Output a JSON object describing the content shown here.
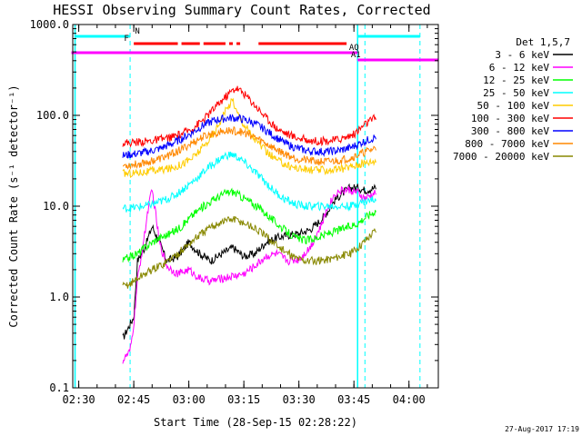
{
  "chart_data": {
    "type": "line",
    "title": "HESSI Observing Summary Count Rates, Corrected",
    "xlabel": "Start Time (28-Sep-15 02:28:22)",
    "ylabel": "Corrected Count Rate (s⁻¹ detector⁻¹)",
    "y_scale": "log",
    "ylim": [
      0.1,
      1000
    ],
    "xlim": [
      "02:28:22",
      "04:08:00"
    ],
    "x_ticks": [
      "02:30",
      "02:45",
      "03:00",
      "03:15",
      "03:30",
      "03:45",
      "04:00"
    ],
    "y_ticks": [
      "0.1",
      "1.0",
      "10.0",
      "100.0",
      "1000.0"
    ],
    "legend_title": "Det 1,5,7",
    "legend_position": "right",
    "footer_date": "27-Aug-2017 17:19",
    "data_start": "02:42",
    "data_end": "03:51",
    "vertical_markers": {
      "solid": [
        "02:29",
        "03:46"
      ],
      "dashed": [
        "02:44",
        "03:48",
        "04:03"
      ]
    },
    "flags": [
      {
        "label": "N",
        "color": "#00ffff",
        "segments": [
          [
            "02:29",
            "02:44"
          ],
          [
            "03:46",
            "04:03"
          ]
        ]
      },
      {
        "label": "F",
        "color": "#ff0000",
        "segments": [
          [
            "02:45",
            "02:57"
          ],
          [
            "02:58",
            "03:03"
          ],
          [
            "03:04",
            "03:10"
          ],
          [
            "03:11",
            "03:12"
          ],
          [
            "03:13",
            "03:14"
          ],
          [
            "03:19",
            "03:43"
          ]
        ]
      },
      {
        "label": "AQ",
        "color": "#ff00ff",
        "segments": [
          [
            "02:28",
            "03:46"
          ]
        ]
      },
      {
        "label": "A1",
        "color": "#ff00ff",
        "segments": [
          [
            "03:46",
            "04:08"
          ]
        ]
      }
    ],
    "series": [
      {
        "name": "3 - 6 keV",
        "color": "#000000",
        "points": [
          [
            "02:42",
            0.35
          ],
          [
            "02:45",
            0.6
          ],
          [
            "02:46",
            2.5
          ],
          [
            "02:48",
            3.5
          ],
          [
            "02:50",
            6
          ],
          [
            "02:52",
            4
          ],
          [
            "02:54",
            2.5
          ],
          [
            "02:57",
            2.8
          ],
          [
            "03:00",
            4
          ],
          [
            "03:03",
            3
          ],
          [
            "03:06",
            2.5
          ],
          [
            "03:09",
            3.0
          ],
          [
            "03:12",
            3.5
          ],
          [
            "03:15",
            2.8
          ],
          [
            "03:18",
            3.0
          ],
          [
            "03:21",
            4.0
          ],
          [
            "03:24",
            4.5
          ],
          [
            "03:27",
            4.8
          ],
          [
            "03:30",
            5.0
          ],
          [
            "03:33",
            5.5
          ],
          [
            "03:36",
            7
          ],
          [
            "03:38",
            9
          ],
          [
            "03:40",
            12
          ],
          [
            "03:42",
            14
          ],
          [
            "03:44",
            16
          ],
          [
            "03:46",
            16
          ],
          [
            "03:48",
            15
          ],
          [
            "03:51",
            16
          ]
        ]
      },
      {
        "name": "6 - 12 keV",
        "color": "#ff00ff",
        "points": [
          [
            "02:42",
            0.2
          ],
          [
            "02:44",
            0.25
          ],
          [
            "02:45",
            0.5
          ],
          [
            "02:46",
            1.5
          ],
          [
            "02:48",
            5
          ],
          [
            "02:49",
            10
          ],
          [
            "02:50",
            15
          ],
          [
            "02:51",
            8
          ],
          [
            "02:52",
            4
          ],
          [
            "02:54",
            2.2
          ],
          [
            "02:57",
            1.8
          ],
          [
            "03:00",
            2.0
          ],
          [
            "03:03",
            1.6
          ],
          [
            "03:06",
            1.5
          ],
          [
            "03:09",
            1.6
          ],
          [
            "03:12",
            1.7
          ],
          [
            "03:15",
            1.8
          ],
          [
            "03:18",
            2.2
          ],
          [
            "03:21",
            2.8
          ],
          [
            "03:24",
            3.0
          ],
          [
            "03:27",
            2.5
          ],
          [
            "03:30",
            2.6
          ],
          [
            "03:33",
            3.5
          ],
          [
            "03:36",
            6
          ],
          [
            "03:38",
            10
          ],
          [
            "03:40",
            14
          ],
          [
            "03:42",
            15
          ],
          [
            "03:44",
            15
          ],
          [
            "03:46",
            14
          ],
          [
            "03:48",
            12
          ],
          [
            "03:51",
            14
          ]
        ]
      },
      {
        "name": "12 - 25 keV",
        "color": "#00ff00",
        "points": [
          [
            "02:42",
            2.5
          ],
          [
            "02:44",
            2.8
          ],
          [
            "02:46",
            3.0
          ],
          [
            "02:48",
            3.5
          ],
          [
            "02:50",
            4.0
          ],
          [
            "02:52",
            4.5
          ],
          [
            "02:55",
            5.0
          ],
          [
            "02:58",
            6.0
          ],
          [
            "03:01",
            8.0
          ],
          [
            "03:04",
            10.0
          ],
          [
            "03:07",
            12.0
          ],
          [
            "03:10",
            14.0
          ],
          [
            "03:12",
            14.5
          ],
          [
            "03:14",
            13.0
          ],
          [
            "03:17",
            11.0
          ],
          [
            "03:20",
            9.0
          ],
          [
            "03:23",
            7.0
          ],
          [
            "03:26",
            5.5
          ],
          [
            "03:29",
            4.5
          ],
          [
            "03:32",
            4.2
          ],
          [
            "03:35",
            4.5
          ],
          [
            "03:38",
            5.0
          ],
          [
            "03:41",
            5.5
          ],
          [
            "03:44",
            6.0
          ],
          [
            "03:46",
            6.5
          ],
          [
            "03:48",
            7.5
          ],
          [
            "03:51",
            9.0
          ]
        ]
      },
      {
        "name": "25 - 50 keV",
        "color": "#00ffff",
        "points": [
          [
            "02:42",
            9.5
          ],
          [
            "02:44",
            9.5
          ],
          [
            "02:46",
            9.8
          ],
          [
            "02:48",
            10.0
          ],
          [
            "02:50",
            10.5
          ],
          [
            "02:53",
            11.5
          ],
          [
            "02:56",
            13.0
          ],
          [
            "02:59",
            16.0
          ],
          [
            "03:02",
            20.0
          ],
          [
            "03:05",
            26.0
          ],
          [
            "03:08",
            32.0
          ],
          [
            "03:10",
            36.0
          ],
          [
            "03:12",
            37.0
          ],
          [
            "03:14",
            33.0
          ],
          [
            "03:17",
            26.0
          ],
          [
            "03:20",
            20.0
          ],
          [
            "03:23",
            15.0
          ],
          [
            "03:26",
            12.0
          ],
          [
            "03:29",
            10.5
          ],
          [
            "03:32",
            10.0
          ],
          [
            "03:35",
            10.0
          ],
          [
            "03:38",
            10.0
          ],
          [
            "03:41",
            10.0
          ],
          [
            "03:44",
            10.0
          ],
          [
            "03:47",
            11.0
          ],
          [
            "03:51",
            12.0
          ]
        ]
      },
      {
        "name": "50 - 100 keV",
        "color": "#ffcc00",
        "points": [
          [
            "02:42",
            23.0
          ],
          [
            "02:44",
            23.0
          ],
          [
            "02:46",
            23.5
          ],
          [
            "02:49",
            24.0
          ],
          [
            "02:52",
            25.0
          ],
          [
            "02:55",
            26.0
          ],
          [
            "02:58",
            29.0
          ],
          [
            "03:01",
            34.0
          ],
          [
            "03:04",
            45.0
          ],
          [
            "03:07",
            65.0
          ],
          [
            "03:09",
            95.0
          ],
          [
            "03:11",
            130.0
          ],
          [
            "03:12",
            150.0
          ],
          [
            "03:13",
            110.0
          ],
          [
            "03:15",
            80.0
          ],
          [
            "03:18",
            55.0
          ],
          [
            "03:21",
            40.0
          ],
          [
            "03:24",
            32.0
          ],
          [
            "03:27",
            28.0
          ],
          [
            "03:30",
            26.0
          ],
          [
            "03:33",
            25.0
          ],
          [
            "03:36",
            25.0
          ],
          [
            "03:39",
            25.0
          ],
          [
            "03:42",
            26.0
          ],
          [
            "03:45",
            28.0
          ],
          [
            "03:48",
            30.0
          ],
          [
            "03:51",
            32.0
          ]
        ]
      },
      {
        "name": "100 - 300 keV",
        "color": "#ff0000",
        "points": [
          [
            "02:42",
            50.0
          ],
          [
            "02:44",
            50.0
          ],
          [
            "02:46",
            51.0
          ],
          [
            "02:49",
            52.0
          ],
          [
            "02:52",
            54.0
          ],
          [
            "02:55",
            57.0
          ],
          [
            "02:58",
            62.0
          ],
          [
            "03:01",
            72.0
          ],
          [
            "03:04",
            90.0
          ],
          [
            "03:07",
            120.0
          ],
          [
            "03:10",
            160.0
          ],
          [
            "03:12",
            190.0
          ],
          [
            "03:13",
            200.0
          ],
          [
            "03:15",
            175.0
          ],
          [
            "03:18",
            130.0
          ],
          [
            "03:21",
            95.0
          ],
          [
            "03:24",
            72.0
          ],
          [
            "03:27",
            62.0
          ],
          [
            "03:30",
            56.0
          ],
          [
            "03:33",
            53.0
          ],
          [
            "03:36",
            52.0
          ],
          [
            "03:39",
            53.0
          ],
          [
            "03:42",
            56.0
          ],
          [
            "03:45",
            62.0
          ],
          [
            "03:48",
            80.0
          ],
          [
            "03:51",
            95.0
          ]
        ]
      },
      {
        "name": "300 - 800 keV",
        "color": "#0000ff",
        "points": [
          [
            "02:42",
            36.0
          ],
          [
            "02:44",
            37.0
          ],
          [
            "02:46",
            38.0
          ],
          [
            "02:49",
            40.0
          ],
          [
            "02:52",
            43.0
          ],
          [
            "02:55",
            48.0
          ],
          [
            "02:58",
            55.0
          ],
          [
            "03:01",
            65.0
          ],
          [
            "03:04",
            78.0
          ],
          [
            "03:07",
            88.0
          ],
          [
            "03:10",
            93.0
          ],
          [
            "03:12",
            94.0
          ],
          [
            "03:14",
            92.0
          ],
          [
            "03:17",
            85.0
          ],
          [
            "03:20",
            73.0
          ],
          [
            "03:23",
            60.0
          ],
          [
            "03:26",
            50.0
          ],
          [
            "03:29",
            44.0
          ],
          [
            "03:32",
            41.0
          ],
          [
            "03:35",
            40.0
          ],
          [
            "03:38",
            40.0
          ],
          [
            "03:41",
            41.0
          ],
          [
            "03:44",
            44.0
          ],
          [
            "03:47",
            50.0
          ],
          [
            "03:51",
            58.0
          ]
        ]
      },
      {
        "name": "800 - 7000 keV",
        "color": "#ff8800",
        "points": [
          [
            "02:42",
            28.0
          ],
          [
            "02:44",
            28.5
          ],
          [
            "02:46",
            29.0
          ],
          [
            "02:49",
            31.0
          ],
          [
            "02:52",
            33.0
          ],
          [
            "02:55",
            37.0
          ],
          [
            "02:58",
            42.0
          ],
          [
            "03:01",
            50.0
          ],
          [
            "03:04",
            58.0
          ],
          [
            "03:07",
            64.0
          ],
          [
            "03:10",
            67.0
          ],
          [
            "03:12",
            68.0
          ],
          [
            "03:14",
            66.0
          ],
          [
            "03:17",
            60.0
          ],
          [
            "03:20",
            52.0
          ],
          [
            "03:23",
            44.0
          ],
          [
            "03:26",
            38.0
          ],
          [
            "03:29",
            34.0
          ],
          [
            "03:32",
            32.0
          ],
          [
            "03:35",
            31.0
          ],
          [
            "03:38",
            31.0
          ],
          [
            "03:41",
            32.0
          ],
          [
            "03:44",
            34.0
          ],
          [
            "03:47",
            38.0
          ],
          [
            "03:51",
            44.0
          ]
        ]
      },
      {
        "name": "7000 - 20000 keV",
        "color": "#888800",
        "points": [
          [
            "02:42",
            1.3
          ],
          [
            "02:44",
            1.4
          ],
          [
            "02:46",
            1.6
          ],
          [
            "02:48",
            1.8
          ],
          [
            "02:50",
            2.0
          ],
          [
            "02:53",
            2.3
          ],
          [
            "02:56",
            2.8
          ],
          [
            "02:59",
            3.5
          ],
          [
            "03:02",
            4.5
          ],
          [
            "03:05",
            5.5
          ],
          [
            "03:08",
            6.5
          ],
          [
            "03:10",
            7.0
          ],
          [
            "03:12",
            7.2
          ],
          [
            "03:14",
            6.8
          ],
          [
            "03:17",
            6.0
          ],
          [
            "03:20",
            5.0
          ],
          [
            "03:23",
            4.0
          ],
          [
            "03:26",
            3.2
          ],
          [
            "03:29",
            2.7
          ],
          [
            "03:32",
            2.5
          ],
          [
            "03:35",
            2.5
          ],
          [
            "03:38",
            2.6
          ],
          [
            "03:41",
            2.8
          ],
          [
            "03:44",
            3.0
          ],
          [
            "03:47",
            3.8
          ],
          [
            "03:51",
            5.5
          ]
        ]
      }
    ]
  }
}
